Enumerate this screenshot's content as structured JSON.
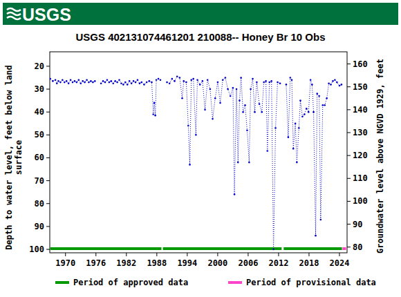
{
  "header": {
    "logo": "USGS"
  },
  "chart_data": {
    "type": "line",
    "title": "USGS 402131074461201 210088-- Honey Br 10 Obs",
    "y_label": [
      "Depth to water level, feet below land",
      "surface"
    ],
    "y2_label": "Groundwater level above NGVD 1929, feet",
    "x": [
      1967.0,
      1967.5,
      1968.0,
      1968.3,
      1968.6,
      1969.0,
      1969.4,
      1969.8,
      1970.2,
      1970.6,
      1971.0,
      1971.4,
      1971.8,
      1972.2,
      1972.6,
      1973.0,
      1973.4,
      1973.8,
      1974.2,
      1974.6,
      1975.0,
      1975.4,
      1975.8,
      1976.4,
      1977.0,
      1977.4,
      1977.8,
      1978.2,
      1978.6,
      1979.0,
      1979.4,
      1979.8,
      1980.2,
      1980.6,
      1981.0,
      1981.4,
      1981.8,
      1982.2,
      1982.6,
      1983.0,
      1983.4,
      1983.8,
      1984.2,
      1984.6,
      1985.0,
      1985.5,
      1986.0,
      1986.5,
      1987.0,
      1987.3,
      1987.5,
      1987.7,
      1987.9,
      1988.3,
      1988.7,
      1989.3,
      1990.0,
      1990.5,
      1991.0,
      1991.5,
      1992.0,
      1992.5,
      1993.0,
      1993.3,
      1993.8,
      1994.2,
      1994.5,
      1994.8,
      1995.2,
      1995.7,
      1996.0,
      1996.5,
      1997.0,
      1997.5,
      1998.0,
      1998.5,
      1999.0,
      1999.5,
      2000.0,
      2000.5,
      2001.0,
      2001.5,
      2002.0,
      2002.5,
      2003.0,
      2003.3,
      2003.7,
      2004.0,
      2004.3,
      2004.6,
      2005.0,
      2005.4,
      2005.8,
      2006.2,
      2006.5,
      2006.9,
      2007.3,
      2007.7,
      2008.2,
      2008.7,
      2009.1,
      2009.5,
      2009.8,
      2010.2,
      2010.6,
      2011.0,
      2011.4,
      2011.8,
      2012.3,
      2012.9,
      2013.5,
      2013.9,
      2014.3,
      2014.6,
      2014.9,
      2015.3,
      2015.6,
      2016.0,
      2016.3,
      2016.7,
      2017.1,
      2017.5,
      2017.9,
      2018.3,
      2018.6,
      2018.9,
      2019.3,
      2019.6,
      2020.0,
      2020.3,
      2020.7,
      2021.1,
      2021.5,
      2021.9,
      2022.3,
      2022.7,
      2023.1,
      2023.5,
      2024.0,
      2024.4
    ],
    "series": [
      {
        "color": "#0000cc",
        "line_style": "dotted",
        "marker": "dot",
        "values": [
          25.5,
          26.5,
          26,
          27.5,
          26.5,
          27,
          26,
          27,
          26.5,
          27.5,
          26,
          27,
          26.5,
          27,
          26,
          27.5,
          26.5,
          27,
          26,
          27,
          26.5,
          27,
          26.5,
          null,
          27.5,
          26.5,
          27,
          26,
          27,
          26.5,
          27.5,
          26.5,
          27,
          26,
          27.5,
          28,
          27,
          28,
          26.5,
          27.5,
          26.5,
          27,
          26,
          27.5,
          27,
          28,
          27,
          26.5,
          27,
          41,
          36,
          41.5,
          26,
          25.5,
          26,
          null,
          27,
          27.5,
          25.5,
          26.5,
          24.5,
          25,
          34,
          26.5,
          27,
          46,
          63,
          26,
          25.5,
          50,
          26,
          28,
          26.5,
          39,
          26,
          30,
          43,
          34,
          27,
          36,
          26,
          25,
          30,
          33,
          29.5,
          76,
          30,
          62,
          35,
          25,
          40,
          37,
          48,
          62,
          30,
          25.5,
          40,
          27,
          36.5,
          40,
          27,
          26.5,
          57,
          27,
          26.5,
          100,
          47,
          27,
          27.5,
          null,
          28,
          51,
          25,
          26,
          56,
          45,
          62,
          47,
          35,
          42,
          41,
          38.5,
          40,
          26,
          28,
          40,
          94,
          32,
          33,
          87,
          37,
          37,
          34,
          27.5,
          28,
          26.5,
          26,
          27,
          28.5,
          28
        ]
      }
    ],
    "xlim": [
      1966.9,
      2025.5
    ],
    "xticks": [
      1970,
      1976,
      1982,
      1988,
      1994,
      2000,
      2006,
      2012,
      2018,
      2024
    ],
    "ylim": [
      101.5,
      13.7
    ],
    "yticks": [
      20,
      30,
      40,
      50,
      60,
      70,
      80,
      90,
      100
    ],
    "y2lim": [
      77.5,
      165.3
    ],
    "y2ticks": [
      80,
      90,
      100,
      110,
      120,
      130,
      140,
      150,
      160
    ],
    "grid": false,
    "legend": "bottom",
    "periods": [
      {
        "name": "Period of approved data",
        "color": "#009900",
        "ranges": [
          [
            1967.0,
            1988.9
          ],
          [
            1989.2,
            2012.6
          ],
          [
            2013.0,
            2024.5
          ]
        ]
      },
      {
        "name": "Period of provisional data",
        "color": "#ff44cc",
        "ranges": [
          [
            2024.6,
            2025.3
          ]
        ]
      }
    ]
  }
}
